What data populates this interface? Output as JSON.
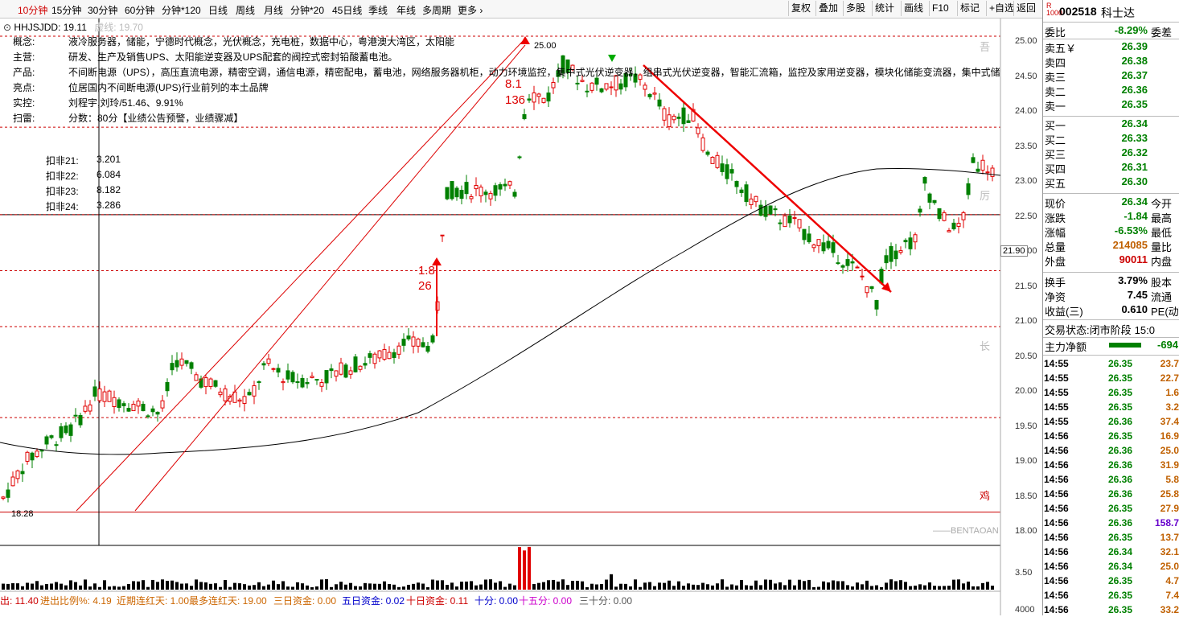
{
  "periods": [
    "10分钟",
    "15分钟",
    "30分钟",
    "60分钟",
    "分钟*120",
    "日线",
    "周线",
    "月线",
    "分钟*20",
    "45日线",
    "季线",
    "年线",
    "多周期",
    "更多 ›"
  ],
  "active_period": "10分钟",
  "toolbar": [
    "复权",
    "叠加",
    "多股",
    "统计",
    "画线",
    "F10",
    "标记",
    "+自选",
    "返回"
  ],
  "indicator": {
    "name": "HHJSJDD: 19.11",
    "suffix": "虚线: 19.70"
  },
  "info": [
    {
      "label": "概念:",
      "value": "液冷服务器，储能，宁德时代概念，光伏概念，充电桩，数据中心，粤港澳大湾区，太阳能"
    },
    {
      "label": "主营:",
      "value": "研发、生产及销售UPS、太阳能逆变器及UPS配套的阀控式密封铅酸蓄电池。"
    },
    {
      "label": "产品:",
      "value": "不间断电源（UPS），高压直流电源，精密空调，通信电源，精密配电，蓄电池，网络服务器机柜，动力环境监控，集中式光伏逆变器，组串式光伏逆变器，智能汇流箱，监控及家用逆变器，模块化储能变流器，集中式储"
    },
    {
      "label": "亮点:",
      "value": "位居国内不间断电源(UPS)行业前列的本土品牌"
    },
    {
      "label": "实控:",
      "value": "刘程宇,刘玲/51.46、9.91%"
    },
    {
      "label": "扫雷:",
      "value": "分数：80分【业绩公告预警，业绩骤减】"
    }
  ],
  "deduct": [
    {
      "label": "扣非21:",
      "value": "3.201"
    },
    {
      "label": "扣非22:",
      "value": "6.084"
    },
    {
      "label": "扣非23:",
      "value": "8.182"
    },
    {
      "label": "扣非24:",
      "value": "3.286"
    }
  ],
  "price_axis": [
    "25.00",
    "24.50",
    "24.00",
    "23.50",
    "23.00",
    "22.50",
    "22.00",
    "21.50",
    "21.00",
    "20.50",
    "20.00",
    "19.50",
    "19.00",
    "18.50",
    "18.00"
  ],
  "price_marker": "21.90",
  "annotations": {
    "high": "25.00",
    "low": "18.28",
    "up1": "1.8",
    "up2": "26",
    "top1": "8.1",
    "top2": "136",
    "side_top": "吾",
    "side_mid": "厉",
    "side_long": "长",
    "side_bottom": "鸡",
    "watermark": "BENTAOAN"
  },
  "volume_axis": [
    "3.50",
    "4000"
  ],
  "bottom": [
    {
      "text": "出: 11.40",
      "color": "#cc0000"
    },
    {
      "text": "进出比例%: 4.19",
      "color": "#cc6600"
    },
    {
      "text": "近期连红天: 1.00",
      "color": "#cc6600"
    },
    {
      "text": "最多连红天: 19.00",
      "color": "#cc6600"
    },
    {
      "text": "三日资金: 0.00",
      "color": "#cc6600"
    },
    {
      "text": "五日资金: 0.02",
      "color": "#0000cc"
    },
    {
      "text": "十日资金: 0.11",
      "color": "#cc0000"
    },
    {
      "text": "十分: 0.00",
      "color": "#0000cc"
    },
    {
      "text": "十五分: 0.00",
      "color": "#cc00cc"
    },
    {
      "text": "三十分: 0.00",
      "color": "#555555"
    }
  ],
  "stock": {
    "code": "002518",
    "name": "科士达"
  },
  "weibi": {
    "label": "委比",
    "value": "-8.29%",
    "ext": "委差"
  },
  "asks": [
    {
      "label": "卖五￥",
      "price": "26.39"
    },
    {
      "label": "卖四",
      "price": "26.38"
    },
    {
      "label": "卖三",
      "price": "26.37"
    },
    {
      "label": "卖二",
      "price": "26.36"
    },
    {
      "label": "卖一",
      "price": "26.35"
    }
  ],
  "bids": [
    {
      "label": "买一",
      "price": "26.34"
    },
    {
      "label": "买二",
      "price": "26.33"
    },
    {
      "label": "买三",
      "price": "26.32"
    },
    {
      "label": "买四",
      "price": "26.31"
    },
    {
      "label": "买五",
      "price": "26.30"
    }
  ],
  "quote": [
    {
      "label": "现价",
      "value": "26.34",
      "ext": "今开",
      "color": "#008000"
    },
    {
      "label": "涨跌",
      "value": "-1.84",
      "ext": "最高",
      "color": "#008000"
    },
    {
      "label": "涨幅",
      "value": "-6.53%",
      "ext": "最低",
      "color": "#008000"
    },
    {
      "label": "总量",
      "value": "214085",
      "ext": "量比",
      "color": "#c06000"
    },
    {
      "label": "外盘",
      "value": "90011",
      "ext": "内盘",
      "color": "#cc0000"
    }
  ],
  "quote2": [
    {
      "label": "换手",
      "value": "3.79%",
      "ext": "股本"
    },
    {
      "label": "净资",
      "value": "7.45",
      "ext": "流通"
    },
    {
      "label": "收益(三)",
      "value": "0.610",
      "ext": "PE(动)"
    }
  ],
  "status": {
    "label": "交易状态:",
    "value": "闭市阶段",
    "time": "15:0"
  },
  "mainflow": {
    "label": "主力净额",
    "value": "-694"
  },
  "ticks": [
    {
      "t": "14:55",
      "p": "26.35",
      "v": "23.7"
    },
    {
      "t": "14:55",
      "p": "26.35",
      "v": "22.7"
    },
    {
      "t": "14:55",
      "p": "26.35",
      "v": "1.6"
    },
    {
      "t": "14:55",
      "p": "26.35",
      "v": "3.2"
    },
    {
      "t": "14:55",
      "p": "26.36",
      "v": "37.4"
    },
    {
      "t": "14:56",
      "p": "26.35",
      "v": "16.9"
    },
    {
      "t": "14:56",
      "p": "26.36",
      "v": "25.0"
    },
    {
      "t": "14:56",
      "p": "26.36",
      "v": "31.9"
    },
    {
      "t": "14:56",
      "p": "26.36",
      "v": "5.8"
    },
    {
      "t": "14:56",
      "p": "26.36",
      "v": "25.8"
    },
    {
      "t": "14:56",
      "p": "26.35",
      "v": "27.9"
    },
    {
      "t": "14:56",
      "p": "26.36",
      "v": "158.7"
    },
    {
      "t": "14:56",
      "p": "26.35",
      "v": "13.7"
    },
    {
      "t": "14:56",
      "p": "26.34",
      "v": "32.1"
    },
    {
      "t": "14:56",
      "p": "26.34",
      "v": "25.0"
    },
    {
      "t": "14:56",
      "p": "26.35",
      "v": "4.7"
    },
    {
      "t": "14:56",
      "p": "26.35",
      "v": "7.4"
    },
    {
      "t": "14:56",
      "p": "26.35",
      "v": "33.2"
    }
  ],
  "colors": {
    "up": "#e00000",
    "down": "#008000",
    "ma": "#000000",
    "accent": "#cc0000"
  }
}
